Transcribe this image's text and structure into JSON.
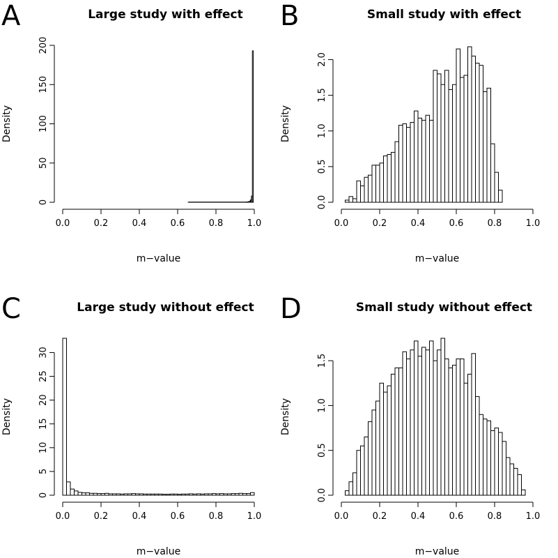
{
  "chart_data": [
    {
      "type": "bar",
      "panel": "A",
      "title": "Large study with effect",
      "xlabel": "m−value",
      "ylabel": "Density",
      "xlim": [
        0,
        1
      ],
      "ylim": [
        0,
        200
      ],
      "xticks": [
        "0.0",
        "0.2",
        "0.4",
        "0.6",
        "0.8",
        "1.0"
      ],
      "yticks": [
        "0",
        "50",
        "100",
        "150",
        "200"
      ],
      "bin_width": 0.005,
      "bins_start": 0.655,
      "values": [
        0.2,
        0.2,
        0.2,
        0.2,
        0.2,
        0.2,
        0.2,
        0.2,
        0.2,
        0.2,
        0.2,
        0.2,
        0.2,
        0.2,
        0.2,
        0.2,
        0.2,
        0.2,
        0.2,
        0.2,
        0.2,
        0.2,
        0.2,
        0.2,
        0.2,
        0.2,
        0.2,
        0.2,
        0.2,
        0.2,
        0.2,
        0.2,
        0.2,
        0.2,
        0.2,
        0.2,
        0.2,
        0.2,
        0.2,
        0.2,
        0.2,
        0.2,
        0.2,
        0.2,
        0.2,
        0.2,
        0.2,
        0.2,
        0.2,
        0.2,
        0.2,
        0.2,
        0.2,
        0.2,
        0.2,
        0.2,
        0.2,
        0.2,
        0.2,
        0.2,
        0.3,
        0.4,
        0.5,
        0.8,
        1.5,
        3,
        8,
        193
      ]
    },
    {
      "type": "bar",
      "panel": "B",
      "title": "Small study with effect",
      "xlabel": "m−value",
      "ylabel": "Density",
      "xlim": [
        0,
        1
      ],
      "ylim": [
        0,
        2.2
      ],
      "xticks": [
        "0.0",
        "0.2",
        "0.4",
        "0.6",
        "0.8",
        "1.0"
      ],
      "yticks": [
        "0.0",
        "0.5",
        "1.0",
        "1.5",
        "2.0"
      ],
      "bin_width": 0.02,
      "bins_start": 0.02,
      "values": [
        0.03,
        0.08,
        0.05,
        0.3,
        0.23,
        0.35,
        0.38,
        0.52,
        0.52,
        0.55,
        0.65,
        0.67,
        0.7,
        0.85,
        1.08,
        1.1,
        1.05,
        1.12,
        1.28,
        1.18,
        1.15,
        1.22,
        1.15,
        1.85,
        1.8,
        1.65,
        1.85,
        1.58,
        1.65,
        2.15,
        1.75,
        1.78,
        2.18,
        2.05,
        1.95,
        1.92,
        1.55,
        1.6,
        0.82,
        0.42,
        0.17
      ]
    },
    {
      "type": "bar",
      "panel": "C",
      "title": "Large study without effect",
      "xlabel": "m−value",
      "ylabel": "Density",
      "xlim": [
        0,
        1
      ],
      "ylim": [
        0,
        33
      ],
      "xticks": [
        "0.0",
        "0.2",
        "0.4",
        "0.6",
        "0.8",
        "1.0"
      ],
      "yticks": [
        "0",
        "5",
        "10",
        "15",
        "20",
        "25",
        "30"
      ],
      "bin_width": 0.02,
      "bins_start": 0,
      "values": [
        33,
        2.8,
        1.3,
        0.9,
        0.6,
        0.5,
        0.5,
        0.4,
        0.4,
        0.35,
        0.35,
        0.4,
        0.3,
        0.3,
        0.3,
        0.25,
        0.3,
        0.3,
        0.35,
        0.3,
        0.3,
        0.25,
        0.25,
        0.25,
        0.25,
        0.25,
        0.2,
        0.2,
        0.25,
        0.25,
        0.2,
        0.25,
        0.25,
        0.3,
        0.25,
        0.3,
        0.25,
        0.3,
        0.3,
        0.35,
        0.3,
        0.35,
        0.3,
        0.3,
        0.35,
        0.35,
        0.4,
        0.35,
        0.35,
        0.55
      ]
    },
    {
      "type": "bar",
      "panel": "D",
      "title": "Small study without effect",
      "xlabel": "m−value",
      "ylabel": "Density",
      "xlim": [
        0,
        1
      ],
      "ylim": [
        0,
        1.75
      ],
      "xticks": [
        "0.0",
        "0.2",
        "0.4",
        "0.6",
        "0.8",
        "1.0"
      ],
      "yticks": [
        "0.0",
        "0.5",
        "1.0",
        "1.5"
      ],
      "bin_width": 0.02,
      "bins_start": 0.02,
      "values": [
        0.05,
        0.15,
        0.25,
        0.5,
        0.55,
        0.65,
        0.82,
        0.95,
        1.05,
        1.25,
        1.15,
        1.22,
        1.35,
        1.42,
        1.42,
        1.6,
        1.52,
        1.62,
        1.72,
        1.55,
        1.65,
        1.62,
        1.72,
        1.5,
        1.62,
        1.75,
        1.52,
        1.42,
        1.45,
        1.52,
        1.52,
        1.25,
        1.35,
        1.58,
        1.1,
        0.9,
        0.85,
        0.83,
        0.72,
        0.75,
        0.7,
        0.6,
        0.42,
        0.35,
        0.3,
        0.23,
        0.06
      ]
    }
  ]
}
